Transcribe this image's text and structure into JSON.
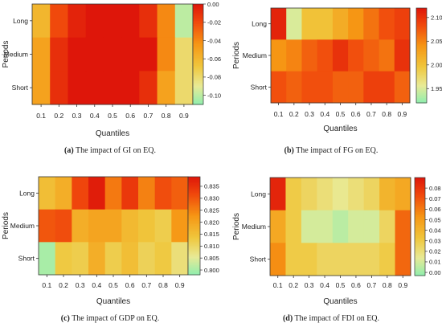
{
  "chart_data": [
    {
      "type": "heatmap",
      "panel": "a",
      "caption_letter": "(a)",
      "caption_text": "The impact of GI on EQ.",
      "xlabel": "Quantiles",
      "ylabel": "Periods",
      "x": [
        "0.1",
        "0.2",
        "0.3",
        "0.4",
        "0.5",
        "0.6",
        "0.7",
        "0.8",
        "0.9"
      ],
      "y": [
        "Long",
        "Medium",
        "Short"
      ],
      "values": [
        [
          -0.06,
          -0.02,
          -0.005,
          0.0,
          0.0,
          0.0,
          -0.01,
          -0.04,
          -0.1
        ],
        [
          -0.05,
          -0.01,
          0.0,
          0.0,
          0.0,
          0.0,
          0.0,
          -0.04,
          -0.08
        ],
        [
          -0.05,
          -0.01,
          0.0,
          0.0,
          0.0,
          0.0,
          -0.01,
          -0.05,
          -0.08
        ]
      ],
      "colorbar_ticks": [
        "0.00",
        "-0.02",
        "-0.04",
        "-0.06",
        "-0.08",
        "-0.10"
      ],
      "colorbar_range": [
        -0.11,
        0.0
      ]
    },
    {
      "type": "heatmap",
      "panel": "b",
      "caption_letter": "(b)",
      "caption_text": "The impact of FG on EQ.",
      "xlabel": "Quantiles",
      "ylabel": "Periods",
      "x": [
        "0.1",
        "0.2",
        "0.3",
        "0.4",
        "0.5",
        "0.6",
        "0.7",
        "0.8",
        "0.9"
      ],
      "y": [
        "Long",
        "Medium",
        "Short"
      ],
      "values": [
        [
          2.11,
          1.95,
          2.0,
          2.0,
          2.02,
          2.04,
          2.06,
          2.08,
          2.09
        ],
        [
          2.04,
          2.05,
          2.07,
          2.08,
          2.1,
          2.08,
          2.07,
          2.06,
          2.1
        ],
        [
          2.08,
          2.07,
          2.08,
          2.08,
          2.07,
          2.07,
          2.09,
          2.09,
          2.07
        ]
      ],
      "colorbar_ticks": [
        "2.10",
        "2.05",
        "2.00",
        "1.95"
      ],
      "colorbar_range": [
        1.92,
        2.12
      ]
    },
    {
      "type": "heatmap",
      "panel": "c",
      "caption_letter": "(c)",
      "caption_text": "The impact of GDP on EQ.",
      "xlabel": "Quantiles",
      "ylabel": "Periods",
      "x": [
        "0.1",
        "0.2",
        "0.3",
        "0.4",
        "0.5",
        "0.6",
        "0.7",
        "0.8",
        "0.9"
      ],
      "y": [
        "Long",
        "Medium",
        "Short"
      ],
      "values": [
        [
          0.815,
          0.818,
          0.832,
          0.838,
          0.826,
          0.834,
          0.825,
          0.831,
          0.829
        ],
        [
          0.83,
          0.831,
          0.818,
          0.82,
          0.82,
          0.816,
          0.814,
          0.812,
          0.822
        ],
        [
          0.8,
          0.813,
          0.812,
          0.818,
          0.812,
          0.815,
          0.811,
          0.813,
          0.808
        ]
      ],
      "colorbar_ticks": [
        "0.835",
        "0.830",
        "0.825",
        "0.820",
        "0.815",
        "0.810",
        "0.805",
        "0.800"
      ],
      "colorbar_range": [
        0.798,
        0.839
      ]
    },
    {
      "type": "heatmap",
      "panel": "d",
      "caption_letter": "(d)",
      "caption_text": "The impact of FDI on EQ.",
      "xlabel": "Quantiles",
      "ylabel": "Periods",
      "x": [
        "0.1",
        "0.2",
        "0.3",
        "0.4",
        "0.5",
        "0.6",
        "0.7",
        "0.8",
        "0.9"
      ],
      "y": [
        "Long",
        "Medium",
        "Short"
      ],
      "values": [
        [
          0.085,
          0.03,
          0.025,
          0.02,
          0.015,
          0.02,
          0.025,
          0.04,
          0.045
        ],
        [
          0.045,
          0.03,
          0.01,
          0.01,
          0.005,
          0.01,
          0.01,
          0.025,
          0.065
        ],
        [
          0.055,
          0.03,
          0.03,
          0.025,
          0.025,
          0.025,
          0.025,
          0.03,
          0.065
        ]
      ],
      "colorbar_ticks": [
        "0.08",
        "0.07",
        "0.06",
        "0.05",
        "0.04",
        "0.03",
        "0.02",
        "0.01",
        "0.00"
      ],
      "colorbar_range": [
        -0.003,
        0.09
      ]
    }
  ]
}
